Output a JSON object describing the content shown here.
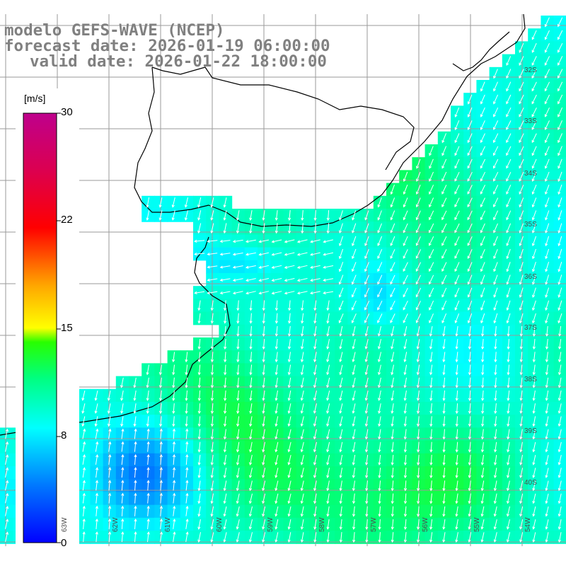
{
  "title": {
    "line1": "modelo GEFS-WAVE (NCEP)",
    "line2": "forecast date: 2026-01-19 06:00:00",
    "line3": "valid date: 2026-01-22 18:00:00"
  },
  "colorbar": {
    "unit": "[m/s]",
    "ticks": [
      "30",
      "22",
      "15",
      "8",
      "0"
    ],
    "min": 0,
    "max": 30
  },
  "lat_labels": [
    "32S",
    "33S",
    "34S",
    "35S",
    "36S",
    "37S",
    "38S",
    "39S",
    "40S"
  ],
  "lon_labels": [
    "63W",
    "62W",
    "61W",
    "60W",
    "59W",
    "58W",
    "57W",
    "56W",
    "55W",
    "54W"
  ],
  "colors": {
    "background": "#ffffff",
    "land": "#ffffff",
    "coastline": "#000000",
    "grid": "#999999",
    "title_text": "#808080",
    "arrow": "#ffffff"
  },
  "map": {
    "variable": "wind speed",
    "unit": "m/s",
    "arrow_meaning": "wind direction"
  }
}
